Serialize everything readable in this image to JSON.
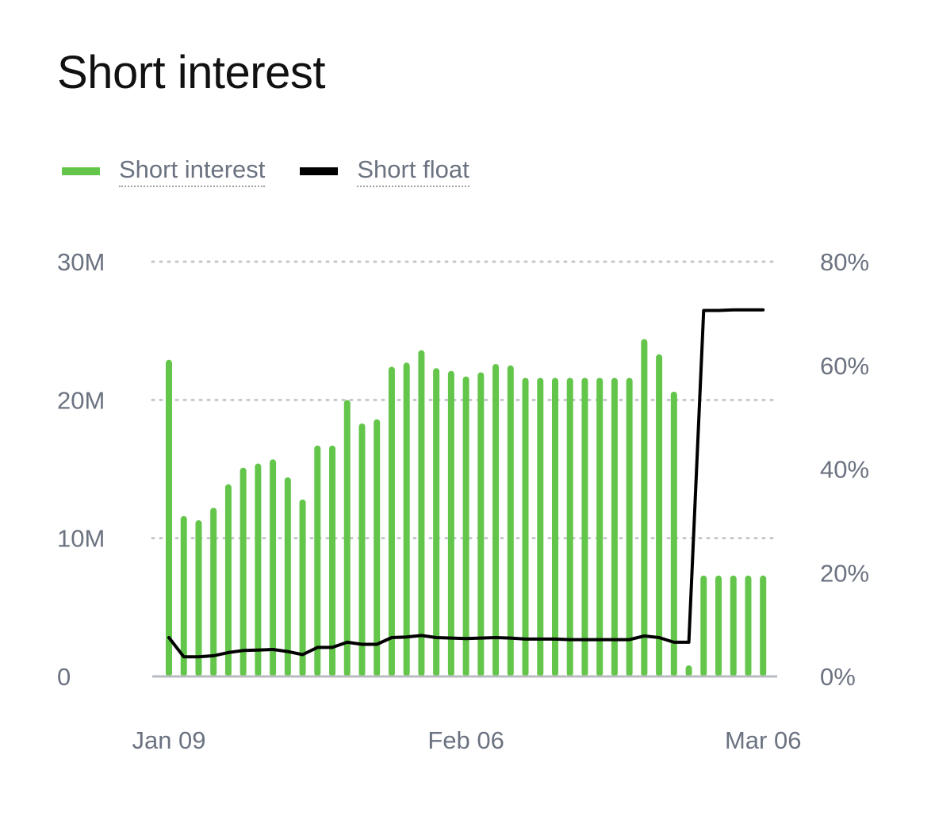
{
  "title": "Short interest",
  "legend": {
    "short_interest_label": "Short interest",
    "short_float_label": "Short float"
  },
  "colors": {
    "bar": "#63c64a",
    "line": "#000000",
    "grid": "#c4c8cc",
    "axis": "#b8bcc0"
  },
  "chart_data": {
    "type": "bar",
    "title": "Short interest",
    "y_left_ticks": [
      "0",
      "10M",
      "20M",
      "30M"
    ],
    "y_left_range": [
      0,
      30
    ],
    "y_left_unit": "M",
    "y_right_ticks": [
      "0%",
      "20%",
      "40%",
      "60%",
      "80%"
    ],
    "y_right_range": [
      0,
      80
    ],
    "x_tick_labels": [
      "Jan 09",
      "Feb 06",
      "Mar 06"
    ],
    "x_tick_index": [
      0,
      20,
      40
    ],
    "grid": true,
    "legend_position": "top-left",
    "series": [
      {
        "name": "Short interest",
        "type": "bar",
        "axis": "left",
        "values": [
          22.9,
          11.6,
          11.3,
          12.2,
          13.9,
          15.1,
          15.4,
          15.7,
          14.4,
          12.8,
          16.7,
          16.7,
          20.0,
          18.3,
          18.6,
          22.4,
          22.7,
          23.6,
          22.3,
          22.1,
          21.7,
          22.0,
          22.6,
          22.5,
          21.6,
          21.6,
          21.6,
          21.6,
          21.6,
          21.6,
          21.6,
          21.6,
          24.4,
          23.3,
          20.6,
          0.8,
          7.3,
          7.3,
          7.3,
          7.3,
          7.3
        ]
      },
      {
        "name": "Short float",
        "type": "line",
        "axis": "right",
        "values": [
          7.5,
          3.8,
          3.8,
          4.0,
          4.6,
          5.0,
          5.1,
          5.2,
          4.8,
          4.2,
          5.6,
          5.6,
          6.6,
          6.2,
          6.2,
          7.5,
          7.6,
          7.9,
          7.5,
          7.4,
          7.3,
          7.4,
          7.5,
          7.4,
          7.2,
          7.2,
          7.2,
          7.1,
          7.1,
          7.1,
          7.1,
          7.1,
          7.8,
          7.5,
          6.6,
          6.6,
          70.6,
          70.6,
          70.7,
          70.7,
          70.7
        ]
      }
    ]
  }
}
